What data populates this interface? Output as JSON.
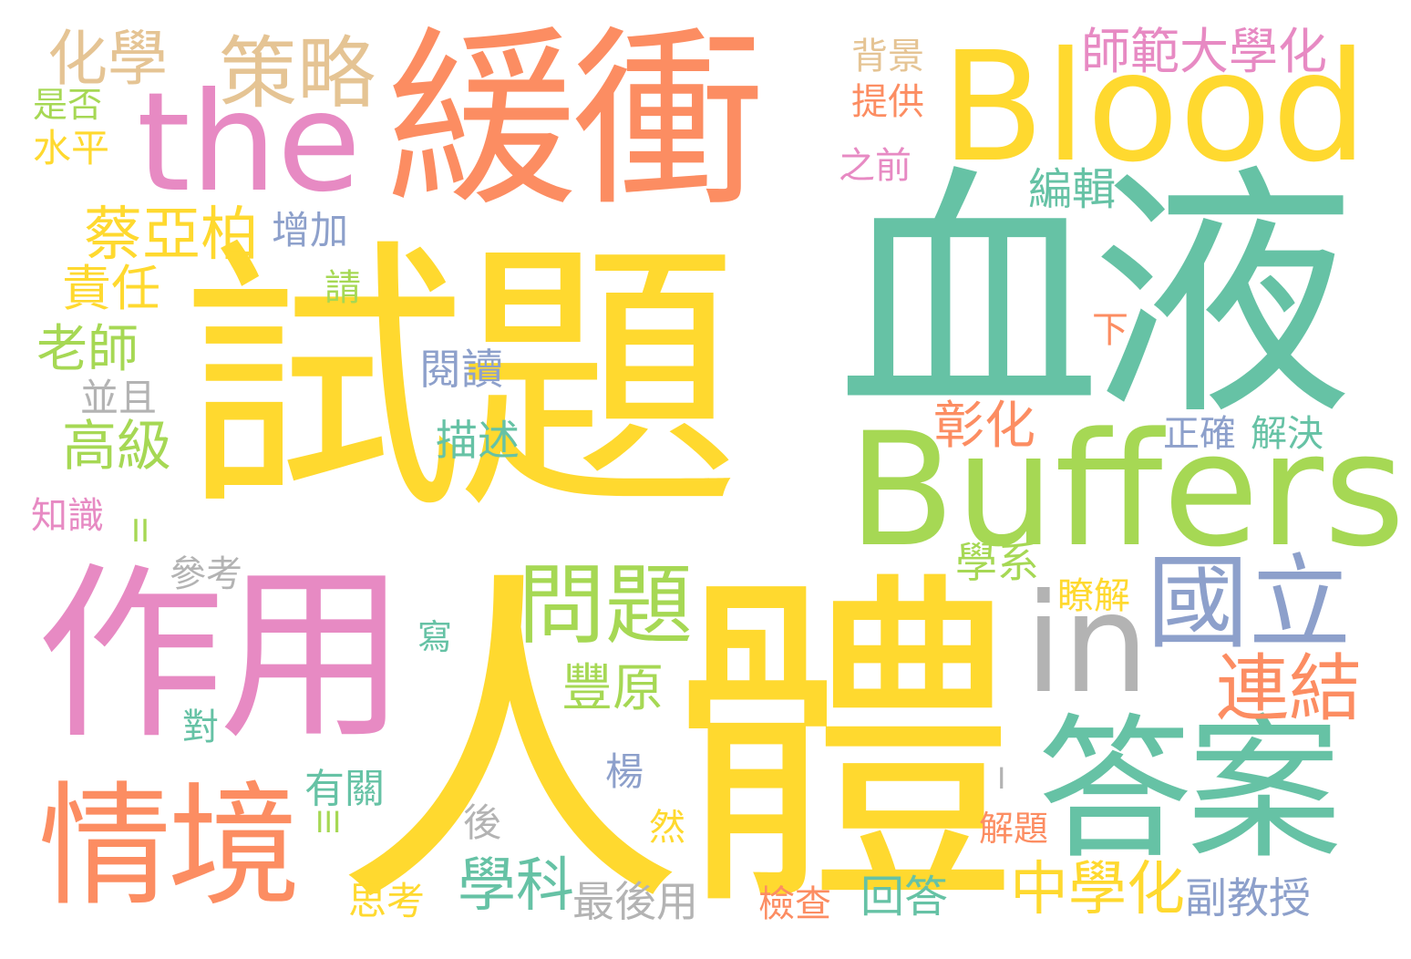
{
  "palette": {
    "yellow": "#FFD92F",
    "teal": "#66C2A5",
    "orange": "#FC8D62",
    "pink": "#E78AC3",
    "green": "#A6D854",
    "blue": "#8DA0CB",
    "tan": "#E5C494",
    "gray": "#B3B3B3"
  },
  "words": {
    "shiti": "試題",
    "renti": "人體",
    "xueye": "血液",
    "huanchong": "緩衝",
    "zuoyong": "作用",
    "the": "the",
    "blood": "Blood",
    "buffers": "Buffers",
    "in": "in",
    "guoli": "國立",
    "daan": "答案",
    "qingjing": "情境",
    "wenti": "問題",
    "lianjie": "連結",
    "celue": "策略",
    "huaxue": "化學",
    "shifan": "師範大學化",
    "caiyabo": "蔡亞柏",
    "zhonghuaxue": "中學化",
    "xueke": "學科",
    "gaoji": "高級",
    "laoshi": "老師",
    "zeren": "責任",
    "zhanghua": "彰化",
    "fengyuan": "豐原",
    "shifou": "是否",
    "shuiping": "水平",
    "beijing": "背景",
    "tigong": "提供",
    "zhiqian": "之前",
    "bianji": "編輯",
    "zengjia": "增加",
    "qing": "請",
    "xia": "下",
    "yuedu": "閱讀",
    "bingqie": "並且",
    "miaoshu": "描述",
    "zhengque": "正確",
    "jiejue": "解決",
    "zhishi": "知識",
    "ii": "II",
    "xuexi": "學系",
    "cankao": "參考",
    "liaojie": "瞭解",
    "xie": "寫",
    "dui": "對",
    "yang": "楊",
    "youguan": "有關",
    "iii": "III",
    "i": "I",
    "hou": "後",
    "ran": "然",
    "jieti": "解題",
    "sikao": "思考",
    "zuihouyong": "最後用",
    "jiancha": "檢查",
    "huida": "回答",
    "fujiaoshou": "副教授"
  }
}
